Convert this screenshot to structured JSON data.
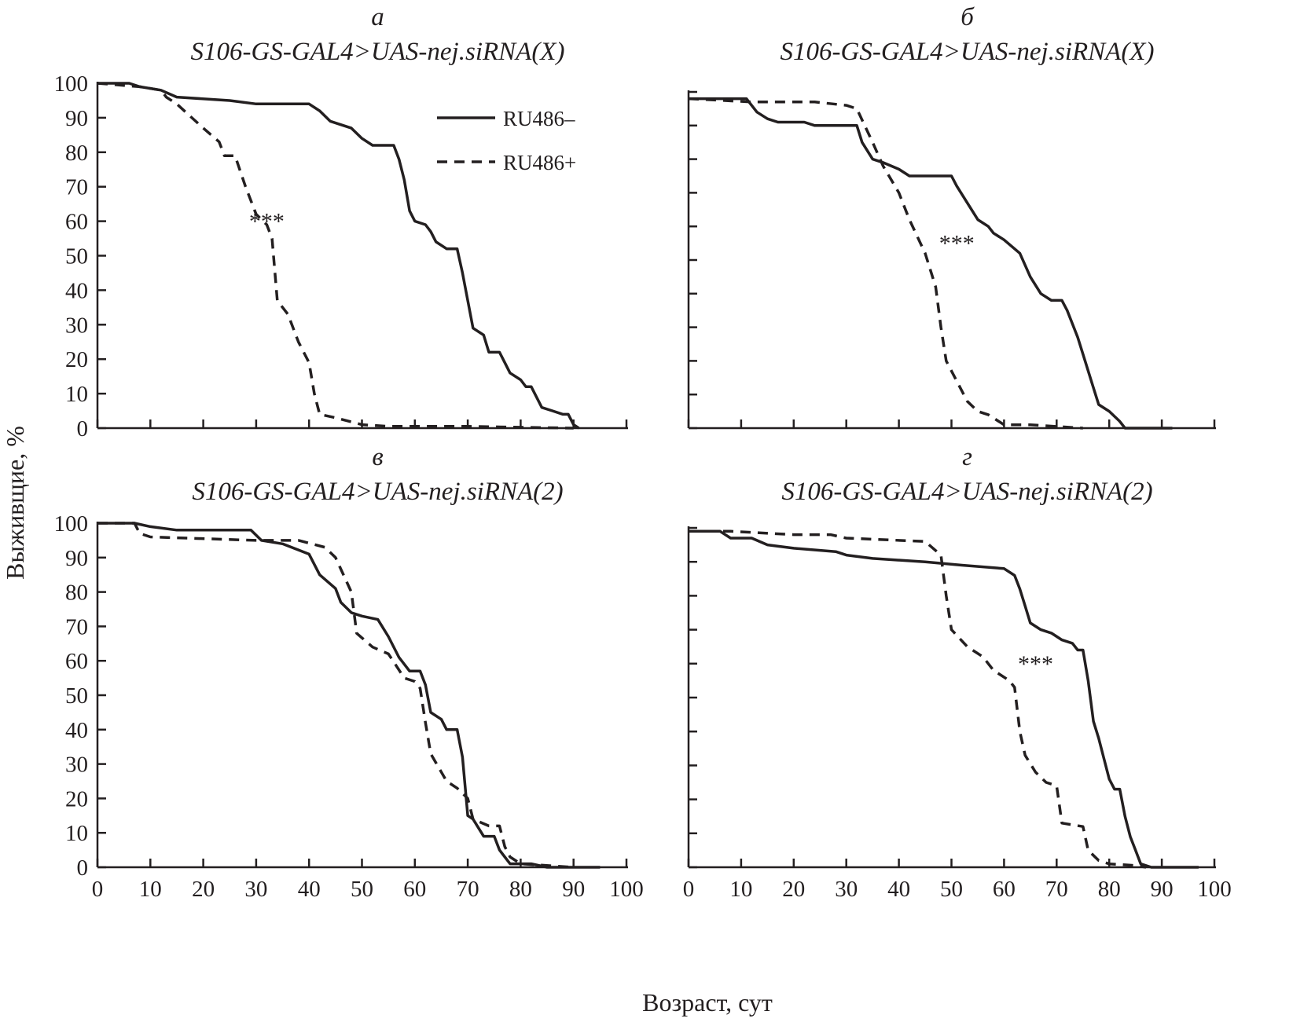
{
  "chart_data": {
    "type": "line",
    "xlabel": "Возраст, сут",
    "ylabel": "Выживщие, %",
    "xlim": [
      0,
      100
    ],
    "ylim": [
      0,
      100
    ],
    "xticks": [
      0,
      10,
      20,
      30,
      40,
      50,
      60,
      70,
      80,
      90,
      100
    ],
    "yticks": [
      0,
      10,
      20,
      30,
      40,
      50,
      60,
      70,
      80,
      90,
      100
    ],
    "legend": {
      "placement": "top-right of panel а",
      "entries": [
        {
          "name": "RU486–",
          "style": "solid"
        },
        {
          "name": "RU486+",
          "style": "dashed"
        }
      ]
    },
    "colors": {
      "line": "#231f20"
    },
    "panels": [
      {
        "letter": "а",
        "title": "S106-GS-GAL4>UAS-nej.siRNA(X)",
        "annotation": "***",
        "series": [
          {
            "name": "RU486–",
            "points": [
              [
                0,
                100
              ],
              [
                6,
                100
              ],
              [
                8,
                99
              ],
              [
                12,
                98
              ],
              [
                15,
                96
              ],
              [
                25,
                95
              ],
              [
                30,
                94
              ],
              [
                40,
                94
              ],
              [
                42,
                92
              ],
              [
                44,
                89
              ],
              [
                48,
                87
              ],
              [
                50,
                84
              ],
              [
                52,
                82
              ],
              [
                56,
                82
              ],
              [
                57,
                78
              ],
              [
                58,
                72
              ],
              [
                59,
                63
              ],
              [
                60,
                60
              ],
              [
                62,
                59
              ],
              [
                63,
                57
              ],
              [
                64,
                54
              ],
              [
                66,
                52
              ],
              [
                68,
                52
              ],
              [
                69,
                45
              ],
              [
                70,
                37
              ],
              [
                71,
                29
              ],
              [
                73,
                27
              ],
              [
                74,
                22
              ],
              [
                76,
                22
              ],
              [
                77,
                19
              ],
              [
                78,
                16
              ],
              [
                80,
                14
              ],
              [
                81,
                12
              ],
              [
                82,
                12
              ],
              [
                84,
                6
              ],
              [
                86,
                5
              ],
              [
                88,
                4
              ],
              [
                89,
                4
              ],
              [
                90,
                1
              ],
              [
                91,
                0
              ]
            ]
          },
          {
            "name": "RU486+",
            "points": [
              [
                0,
                100
              ],
              [
                8,
                99
              ],
              [
                12,
                98
              ],
              [
                13,
                96
              ],
              [
                15,
                94
              ],
              [
                20,
                87
              ],
              [
                23,
                83
              ],
              [
                24,
                79
              ],
              [
                26,
                79
              ],
              [
                28,
                70
              ],
              [
                30,
                62
              ],
              [
                32,
                59
              ],
              [
                33,
                55
              ],
              [
                34,
                37
              ],
              [
                36,
                33
              ],
              [
                38,
                25
              ],
              [
                40,
                19
              ],
              [
                41,
                10
              ],
              [
                42,
                4
              ],
              [
                45,
                3
              ],
              [
                50,
                1
              ],
              [
                55,
                0.5
              ],
              [
                70,
                0.5
              ],
              [
                90,
                0
              ]
            ]
          }
        ]
      },
      {
        "letter": "б",
        "title": "S106-GS-GAL4>UAS-nej.siRNA(X)",
        "annotation": "***",
        "series": [
          {
            "name": "RU486–",
            "points": [
              [
                0,
                98
              ],
              [
                11,
                98
              ],
              [
                13,
                94
              ],
              [
                15,
                92
              ],
              [
                17,
                91
              ],
              [
                22,
                91
              ],
              [
                24,
                90
              ],
              [
                32,
                90
              ],
              [
                33,
                85
              ],
              [
                35,
                80
              ],
              [
                37,
                79
              ],
              [
                40,
                77
              ],
              [
                42,
                75
              ],
              [
                50,
                75
              ],
              [
                51,
                72
              ],
              [
                53,
                67
              ],
              [
                55,
                62
              ],
              [
                57,
                60
              ],
              [
                58,
                58
              ],
              [
                60,
                56
              ],
              [
                63,
                52
              ],
              [
                65,
                45
              ],
              [
                67,
                40
              ],
              [
                69,
                38
              ],
              [
                71,
                38
              ],
              [
                72,
                35
              ],
              [
                74,
                27
              ],
              [
                75,
                22
              ],
              [
                77,
                12
              ],
              [
                78,
                7
              ],
              [
                80,
                5
              ],
              [
                82,
                2
              ],
              [
                83,
                0
              ],
              [
                92,
                0
              ]
            ]
          },
          {
            "name": "RU486+",
            "points": [
              [
                0,
                98
              ],
              [
                12,
                97
              ],
              [
                24,
                97
              ],
              [
                30,
                96
              ],
              [
                32,
                95
              ],
              [
                35,
                85
              ],
              [
                37,
                78
              ],
              [
                40,
                70
              ],
              [
                42,
                62
              ],
              [
                45,
                52
              ],
              [
                47,
                42
              ],
              [
                48,
                30
              ],
              [
                49,
                20
              ],
              [
                51,
                14
              ],
              [
                53,
                8
              ],
              [
                55,
                5
              ],
              [
                57,
                4
              ],
              [
                60,
                1
              ],
              [
                65,
                1
              ],
              [
                70,
                0.5
              ],
              [
                75,
                0
              ]
            ]
          }
        ]
      },
      {
        "letter": "в",
        "title": "S106-GS-GAL4>UAS-nej.siRNA(2)",
        "annotation": "",
        "series": [
          {
            "name": "RU486–",
            "points": [
              [
                0,
                100
              ],
              [
                7,
                100
              ],
              [
                10,
                99
              ],
              [
                15,
                98
              ],
              [
                29,
                98
              ],
              [
                31,
                95
              ],
              [
                35,
                94
              ],
              [
                40,
                91
              ],
              [
                42,
                85
              ],
              [
                45,
                81
              ],
              [
                46,
                77
              ],
              [
                48,
                74
              ],
              [
                50,
                73
              ],
              [
                53,
                72
              ],
              [
                55,
                67
              ],
              [
                57,
                61
              ],
              [
                59,
                57
              ],
              [
                61,
                57
              ],
              [
                62,
                53
              ],
              [
                63,
                45
              ],
              [
                65,
                43
              ],
              [
                66,
                40
              ],
              [
                68,
                40
              ],
              [
                69,
                32
              ],
              [
                70,
                15
              ],
              [
                71,
                14
              ],
              [
                73,
                9
              ],
              [
                75,
                9
              ],
              [
                76,
                5
              ],
              [
                78,
                1
              ],
              [
                82,
                1
              ],
              [
                85,
                0
              ],
              [
                95,
                0
              ]
            ]
          },
          {
            "name": "RU486+",
            "points": [
              [
                0,
                100
              ],
              [
                7,
                100
              ],
              [
                8,
                97
              ],
              [
                10,
                96
              ],
              [
                30,
                95
              ],
              [
                38,
                95
              ],
              [
                43,
                93
              ],
              [
                45,
                90
              ],
              [
                48,
                80
              ],
              [
                49,
                68
              ],
              [
                52,
                64
              ],
              [
                55,
                62
              ],
              [
                58,
                55
              ],
              [
                60,
                54
              ],
              [
                61,
                52
              ],
              [
                62,
                42
              ],
              [
                63,
                33
              ],
              [
                66,
                25
              ],
              [
                68,
                23
              ],
              [
                70,
                20
              ],
              [
                71,
                14
              ],
              [
                74,
                12
              ],
              [
                76,
                12
              ],
              [
                77,
                6
              ],
              [
                78,
                3
              ],
              [
                80,
                1
              ],
              [
                90,
                0
              ]
            ]
          }
        ]
      },
      {
        "letter": "г",
        "title": "S106-GS-GAL4>UAS-nej.siRNA(2)",
        "annotation": "***",
        "series": [
          {
            "name": "RU486–",
            "points": [
              [
                0,
                99
              ],
              [
                6,
                99
              ],
              [
                8,
                97
              ],
              [
                12,
                97
              ],
              [
                15,
                95
              ],
              [
                20,
                94
              ],
              [
                28,
                93
              ],
              [
                30,
                92
              ],
              [
                35,
                91
              ],
              [
                45,
                90
              ],
              [
                52,
                89
              ],
              [
                60,
                88
              ],
              [
                62,
                86
              ],
              [
                63,
                82
              ],
              [
                64,
                77
              ],
              [
                65,
                72
              ],
              [
                67,
                70
              ],
              [
                69,
                69
              ],
              [
                71,
                67
              ],
              [
                73,
                66
              ],
              [
                74,
                64
              ],
              [
                75,
                64
              ],
              [
                76,
                55
              ],
              [
                77,
                43
              ],
              [
                78,
                38
              ],
              [
                79,
                32
              ],
              [
                80,
                26
              ],
              [
                81,
                23
              ],
              [
                82,
                23
              ],
              [
                83,
                15
              ],
              [
                84,
                9
              ],
              [
                85,
                5
              ],
              [
                86,
                1
              ],
              [
                88,
                0
              ],
              [
                97,
                0
              ]
            ]
          },
          {
            "name": "RU486+",
            "points": [
              [
                0,
                99
              ],
              [
                8,
                99
              ],
              [
                20,
                98
              ],
              [
                27,
                98
              ],
              [
                30,
                97
              ],
              [
                45,
                96
              ],
              [
                48,
                92
              ],
              [
                49,
                80
              ],
              [
                50,
                70
              ],
              [
                53,
                65
              ],
              [
                56,
                62
              ],
              [
                58,
                58
              ],
              [
                61,
                55
              ],
              [
                62,
                53
              ],
              [
                63,
                40
              ],
              [
                64,
                33
              ],
              [
                66,
                28
              ],
              [
                68,
                25
              ],
              [
                70,
                24
              ],
              [
                71,
                13
              ],
              [
                75,
                12
              ],
              [
                76,
                5
              ],
              [
                78,
                2
              ],
              [
                80,
                1
              ],
              [
                85,
                0.5
              ],
              [
                87,
                0
              ]
            ]
          }
        ]
      }
    ]
  }
}
